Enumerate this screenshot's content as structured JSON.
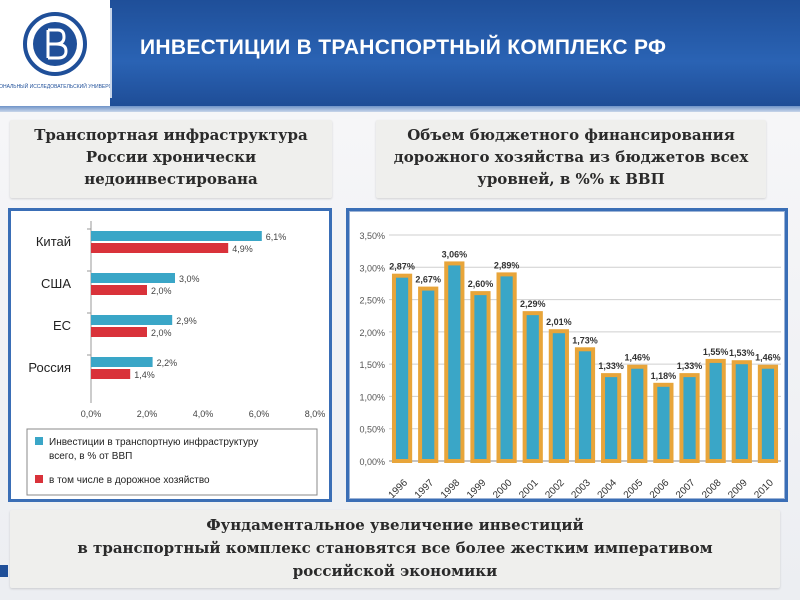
{
  "header": {
    "title": "ИНВЕСТИЦИИ В ТРАНСПОРТНЫЙ КОМПЛЕКС РФ",
    "logo_text": "НАЦИОНАЛЬНЫЙ ИССЛЕДОВАТЕЛЬСКИЙ УНИВЕРСИТЕТ"
  },
  "captions": {
    "left": [
      "Транспортная инфраструктура",
      "России хронически",
      "недоинвестирована"
    ],
    "right": [
      "Объем бюджетного финансирования",
      "дорожного хозяйства из бюджетов всех",
      "уровней, в %% к ВВП"
    ],
    "bottom": [
      "Фундаментальное увеличение инвестиций",
      "в транспортный комплекс становятся все более жестким императивом",
      "российской экономики"
    ]
  },
  "colors": {
    "header": "#2a63b4",
    "series_total": "#3aa6c7",
    "series_road": "#d9323a",
    "bar_fill": "#3aa6c7",
    "bar_border": "#e8a53a"
  },
  "chart_data": [
    {
      "type": "bar",
      "orientation": "horizontal",
      "categories": [
        "Китай",
        "США",
        "ЕС",
        "Россия"
      ],
      "series": [
        {
          "name": "Инвестиции в транспортную инфраструктуру всего, в % от ВВП",
          "values": [
            6.1,
            3.0,
            2.9,
            2.2
          ],
          "labels": [
            "6,1%",
            "3,0%",
            "2,9%",
            "2,2%"
          ]
        },
        {
          "name": "в том числе в дорожное хозяйство",
          "values": [
            4.9,
            2.0,
            2.0,
            1.4
          ],
          "labels": [
            "4,9%",
            "2,0%",
            "2,0%",
            "1,4%"
          ]
        }
      ],
      "xlim": [
        0,
        8
      ],
      "xticks": [
        "0,0%",
        "2,0%",
        "4,0%",
        "6,0%",
        "8,0%"
      ],
      "legend_position": "bottom"
    },
    {
      "type": "bar",
      "orientation": "vertical",
      "categories": [
        "1996",
        "1997",
        "1998",
        "1999",
        "2000",
        "2001",
        "2002",
        "2003",
        "2004",
        "2005",
        "2006",
        "2007",
        "2008",
        "2009",
        "2010"
      ],
      "values": [
        2.87,
        2.67,
        3.06,
        2.6,
        2.89,
        2.29,
        2.01,
        1.73,
        1.33,
        1.46,
        1.18,
        1.33,
        1.55,
        1.53,
        1.46
      ],
      "value_labels": [
        "2,87%",
        "2,67%",
        "3,06%",
        "2,60%",
        "2,89%",
        "2,29%",
        "2,01%",
        "1,73%",
        "1,33%",
        "1,46%",
        "1,18%",
        "1,33%",
        "1,55%",
        "1,53%",
        "1,46%"
      ],
      "ylim": [
        0,
        3.5
      ],
      "yticks": [
        "0,00%",
        "0,50%",
        "1,00%",
        "1,50%",
        "2,00%",
        "2,50%",
        "3,00%",
        "3,50%"
      ],
      "grid": true
    }
  ]
}
